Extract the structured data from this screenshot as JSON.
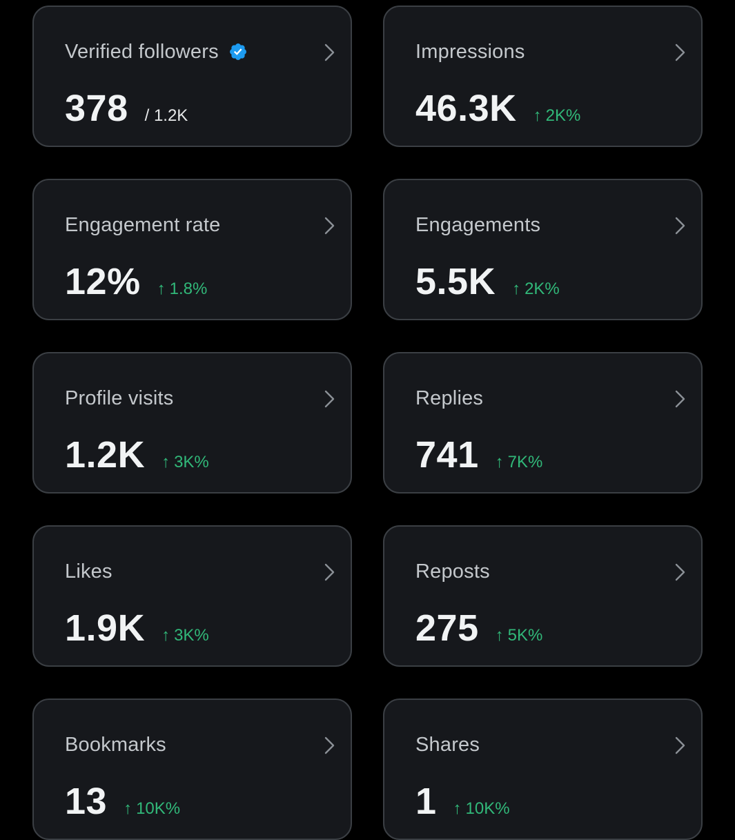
{
  "colors": {
    "background": "#000000",
    "card_background": "#16181c",
    "card_border": "#3b3f44",
    "positive_change": "#31b879",
    "verified_badge": "#1d9bf0"
  },
  "cards": [
    {
      "label": "Verified followers",
      "icon": "verified-badge-icon",
      "value": "378",
      "total": "/ 1.2K"
    },
    {
      "label": "Impressions",
      "value": "46.3K",
      "change": "2K%"
    },
    {
      "label": "Engagement rate",
      "value": "12%",
      "change": "1.8%"
    },
    {
      "label": "Engagements",
      "value": "5.5K",
      "change": "2K%"
    },
    {
      "label": "Profile visits",
      "value": "1.2K",
      "change": "3K%"
    },
    {
      "label": "Replies",
      "value": "741",
      "change": "7K%"
    },
    {
      "label": "Likes",
      "value": "1.9K",
      "change": "3K%"
    },
    {
      "label": "Reposts",
      "value": "275",
      "change": "5K%"
    },
    {
      "label": "Bookmarks",
      "value": "13",
      "change": "10K%"
    },
    {
      "label": "Shares",
      "value": "1",
      "change": "10K%"
    }
  ],
  "arrow_glyph": "↑"
}
